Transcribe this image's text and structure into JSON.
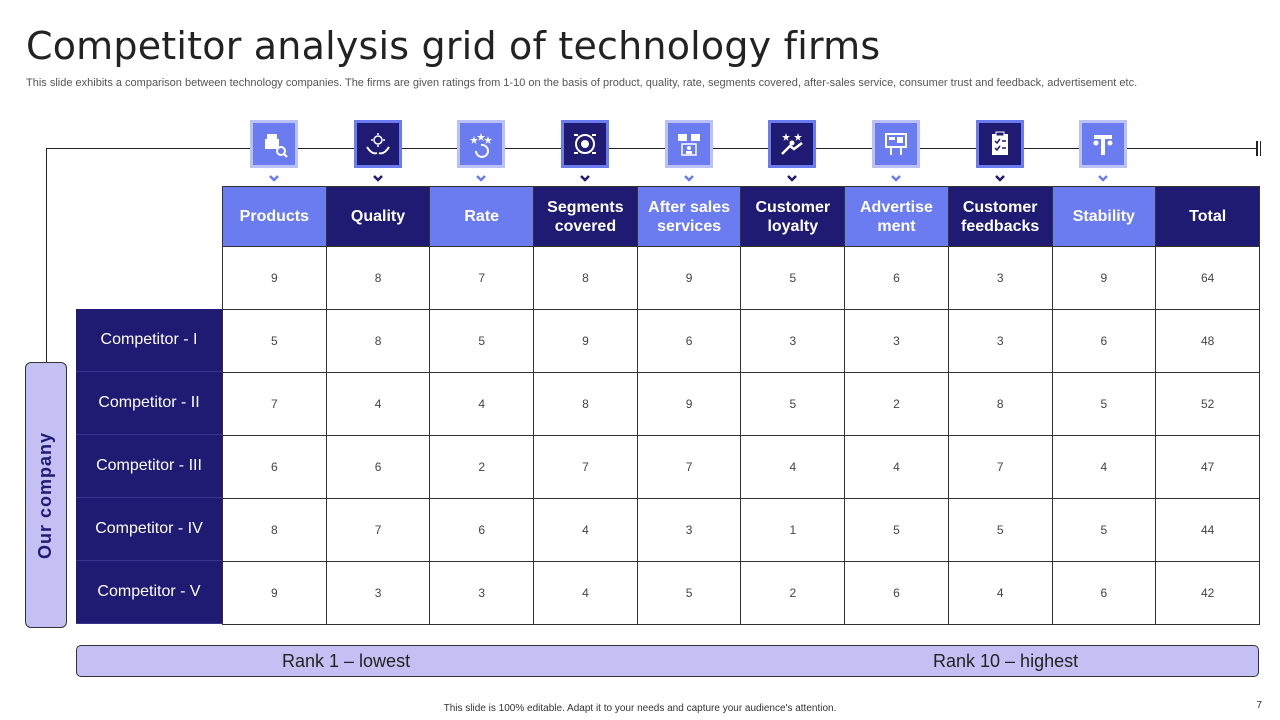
{
  "title": "Competitor analysis grid of technology firms",
  "subtitle": "This slide exhibits a comparison between technology companies. The firms are given ratings from 1-10 on the basis of product, quality, rate,  segments covered, after-sales service, consumer trust and feedback, advertisement etc.",
  "columns": [
    {
      "label": "Products",
      "icon": "delivery-box-icon",
      "style": "light"
    },
    {
      "label": "Quality",
      "icon": "hands-quality-icon",
      "style": "dark"
    },
    {
      "label": "Rate",
      "icon": "rating-stars-icon",
      "style": "light"
    },
    {
      "label": "Segments covered",
      "icon": "target-segments-icon",
      "style": "dark"
    },
    {
      "label": "After sales services",
      "icon": "customer-support-icon",
      "style": "light"
    },
    {
      "label": "Customer loyalty",
      "icon": "loyalty-stars-icon",
      "style": "dark"
    },
    {
      "label": "Advertise ment",
      "icon": "billboard-icon",
      "style": "light"
    },
    {
      "label": "Customer feedbacks",
      "icon": "feedback-clipboard-icon",
      "style": "dark"
    },
    {
      "label": "Stability",
      "icon": "stability-icon",
      "style": "light"
    },
    {
      "label": "Total",
      "icon": "",
      "style": "dark"
    }
  ],
  "our_company": {
    "label": "Our company",
    "values": [
      "9",
      "8",
      "7",
      "8",
      "9",
      "5",
      "6",
      "3",
      "9",
      "64"
    ]
  },
  "competitors": [
    {
      "label": "Competitor - I",
      "values": [
        "5",
        "8",
        "5",
        "9",
        "6",
        "3",
        "3",
        "3",
        "6",
        "48"
      ]
    },
    {
      "label": "Competitor - II",
      "values": [
        "7",
        "4",
        "4",
        "8",
        "9",
        "5",
        "2",
        "8",
        "5",
        "52"
      ]
    },
    {
      "label": "Competitor - III",
      "values": [
        "6",
        "6",
        "2",
        "7",
        "7",
        "4",
        "4",
        "7",
        "4",
        "47"
      ]
    },
    {
      "label": "Competitor - IV",
      "values": [
        "8",
        "7",
        "6",
        "4",
        "3",
        "1",
        "5",
        "5",
        "5",
        "44"
      ]
    },
    {
      "label": "Competitor - V",
      "values": [
        "9",
        "3",
        "3",
        "4",
        "5",
        "2",
        "6",
        "4",
        "6",
        "42"
      ]
    }
  ],
  "rank": {
    "low": "Rank 1 – lowest",
    "high": "Rank 10 – highest"
  },
  "footer": "This slide is 100% editable.  Adapt it to your needs and capture your audience's attention.",
  "page_number": "7",
  "colors": {
    "dark": "#1f1a72",
    "light": "#6b7cf0",
    "lavender": "#c4c0f3"
  }
}
